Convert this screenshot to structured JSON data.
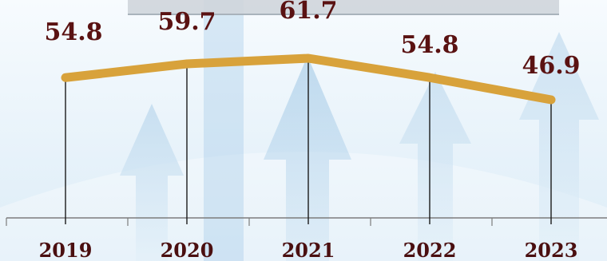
{
  "chart_data": {
    "type": "line",
    "categories": [
      "2019",
      "2020",
      "2021",
      "2022",
      "2023"
    ],
    "values": [
      54.8,
      59.7,
      61.7,
      54.8,
      46.9
    ],
    "value_labels": [
      "54.8",
      "59.7",
      "61.7",
      "54.8",
      "46.9"
    ],
    "title": "",
    "xlabel": "",
    "ylabel": "",
    "ylim": [
      0,
      70
    ],
    "grid": false,
    "legend": "none",
    "colors": {
      "line": "#d8a23b",
      "value_text": "#5a1212",
      "year_text": "#4a0f10",
      "axis": "#7c7c7c",
      "drop_lines": "#1b1b1b"
    }
  }
}
